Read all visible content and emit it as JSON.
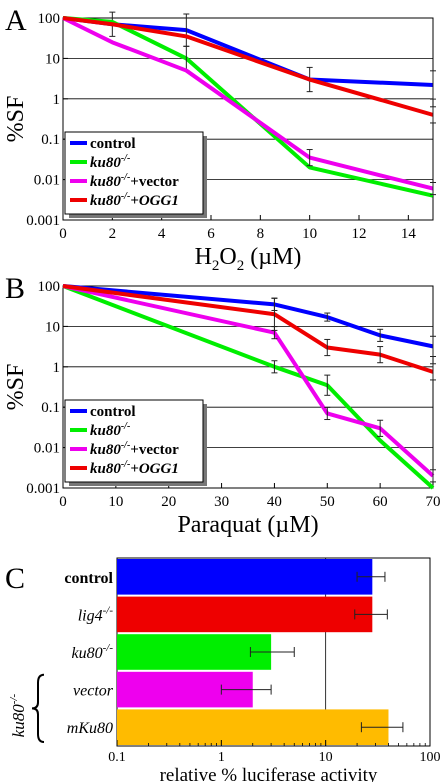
{
  "figure": {
    "panel_letters": [
      "A",
      "B",
      "C"
    ]
  },
  "chart_data": [
    {
      "panel": "A",
      "type": "line",
      "yscale": "log",
      "ylabel": "%SF",
      "xlabel_parts": [
        "H",
        "2",
        "O",
        "2",
        " (µM)"
      ],
      "xlim": [
        0,
        15
      ],
      "ylim": [
        0.001,
        100
      ],
      "xticks": [
        0,
        2,
        4,
        6,
        8,
        10,
        12,
        14
      ],
      "yticks": [
        100,
        10,
        1,
        0.1,
        0.01,
        0.001
      ],
      "ytick_labels": [
        "100",
        "10",
        "1",
        "0.1",
        "0.01",
        "0.001"
      ],
      "grid": "horizontal",
      "legend_position": "bottom-left",
      "legend": [
        {
          "base": "control",
          "sup": "",
          "suffix": "",
          "italic_suffix": false
        },
        {
          "base": "ku80",
          "sup": "-/-",
          "suffix": "",
          "italic_suffix": false
        },
        {
          "base": "ku80",
          "sup": "-/-",
          "suffix": "+vector",
          "italic_suffix": false
        },
        {
          "base": "ku80",
          "sup": "-/-",
          "suffix": "+OGG1",
          "italic_suffix": true
        }
      ],
      "series": [
        {
          "color": "#0000ff",
          "x": [
            0,
            2,
            5,
            10,
            15
          ],
          "y": [
            100,
            70,
            50,
            3,
            2.2
          ],
          "err": [
            0,
            0.3,
            0.4,
            0.3,
            0.35
          ]
        },
        {
          "color": "#00ee00",
          "x": [
            0,
            2,
            5,
            10,
            15
          ],
          "y": [
            100,
            80,
            10,
            0.02,
            0.004
          ],
          "err": [
            0,
            0,
            0.3,
            0,
            0
          ]
        },
        {
          "color": "#ee00ee",
          "x": [
            0,
            2,
            5,
            10,
            15
          ],
          "y": [
            100,
            25,
            5,
            0.035,
            0.006
          ],
          "err": [
            0,
            0,
            0,
            0.2,
            0.15
          ]
        },
        {
          "color": "#ee0000",
          "x": [
            0,
            2,
            5,
            10,
            15
          ],
          "y": [
            100,
            70,
            35,
            3,
            0.4
          ],
          "err": [
            0,
            0,
            0,
            0,
            0.2
          ]
        }
      ]
    },
    {
      "panel": "B",
      "type": "line",
      "yscale": "log",
      "ylabel": "%SF",
      "xlabel_parts": [
        "Paraquat (µM)"
      ],
      "xlim": [
        0,
        70
      ],
      "ylim": [
        0.001,
        100
      ],
      "xticks": [
        0,
        10,
        20,
        30,
        40,
        50,
        60,
        70
      ],
      "yticks": [
        100,
        10,
        1,
        0.1,
        0.01,
        0.001
      ],
      "ytick_labels": [
        "100",
        "10",
        "1",
        "0.1",
        "0.01",
        "0.001"
      ],
      "grid": "horizontal",
      "legend_position": "bottom-left",
      "legend": [
        {
          "base": "control",
          "sup": "",
          "suffix": "",
          "italic_suffix": false
        },
        {
          "base": "ku80",
          "sup": "-/-",
          "suffix": "",
          "italic_suffix": false
        },
        {
          "base": "ku80",
          "sup": "-/-",
          "suffix": "+vector",
          "italic_suffix": false
        },
        {
          "base": "ku80",
          "sup": "-/-",
          "suffix": "+OGG1",
          "italic_suffix": true
        }
      ],
      "series": [
        {
          "color": "#0000ff",
          "x": [
            0,
            40,
            50,
            60,
            70
          ],
          "y": [
            100,
            35,
            17,
            6,
            3.2
          ],
          "err": [
            0,
            0.15,
            0.1,
            0.15,
            0.25
          ]
        },
        {
          "color": "#00ee00",
          "x": [
            0,
            40,
            50,
            60,
            70
          ],
          "y": [
            100,
            1,
            0.35,
            0.015,
            0.001
          ],
          "err": [
            0,
            0.15,
            0.25,
            0,
            0
          ]
        },
        {
          "color": "#ee00ee",
          "x": [
            0,
            40,
            50,
            60,
            70
          ],
          "y": [
            100,
            7,
            0.07,
            0.03,
            0.002
          ],
          "err": [
            0,
            0.15,
            0.15,
            0.2,
            0.15
          ]
        },
        {
          "color": "#ee0000",
          "x": [
            0,
            40,
            50,
            60,
            70
          ],
          "y": [
            100,
            20,
            3,
            2,
            0.75
          ],
          "err": [
            0,
            0.4,
            0.2,
            0.2,
            0.2
          ]
        }
      ]
    },
    {
      "panel": "C",
      "type": "bar",
      "orientation": "horizontal",
      "xscale": "log",
      "xlabel": "relative % luciferase activity",
      "xlim": [
        0.1,
        100
      ],
      "xticks": [
        0.1,
        1,
        10,
        100
      ],
      "xtick_labels": [
        "0.1",
        "1",
        "10",
        "100"
      ],
      "group_label": {
        "base": "ku80",
        "sup": "-/-"
      },
      "categories": [
        {
          "base": "control",
          "sup": "",
          "italic": false
        },
        {
          "base": "lig4",
          "sup": "-/-",
          "italic": true
        },
        {
          "base": "ku80",
          "sup": "-/-",
          "italic": true
        },
        {
          "base": "vector",
          "sup": "",
          "italic": true
        },
        {
          "base": "mKu80",
          "sup": "",
          "italic": true
        }
      ],
      "values": [
        28,
        28,
        3,
        2,
        40
      ],
      "err_low": [
        20,
        19,
        1.9,
        1,
        22
      ],
      "err_high": [
        37,
        39,
        5,
        3,
        55
      ],
      "colors": [
        "#0000ff",
        "#ee0000",
        "#00ee00",
        "#ee00ee",
        "#ffbb00"
      ]
    }
  ]
}
